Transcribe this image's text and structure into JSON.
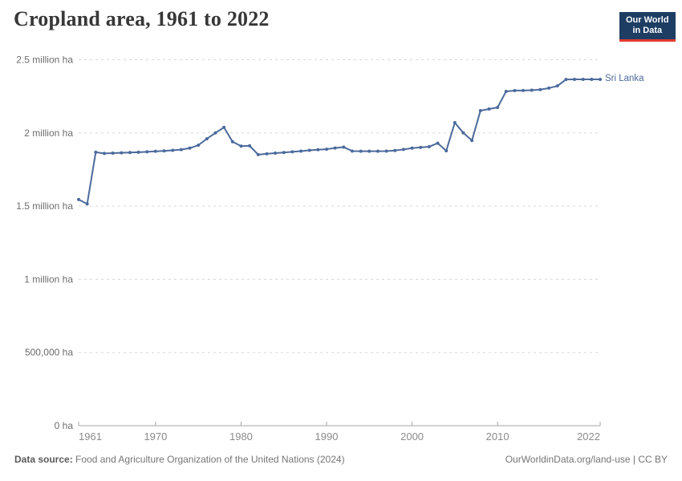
{
  "header": {
    "title": "Cropland area, 1961 to 2022",
    "logo_line1": "Our World",
    "logo_line2": "in Data"
  },
  "chart_data": {
    "type": "line",
    "title": "Cropland area, 1961 to 2022",
    "xlabel": "",
    "ylabel": "",
    "unit": "ha",
    "xlim": [
      1961,
      2022
    ],
    "ylim": [
      0,
      2500000
    ],
    "grid": "horizontal-dashed",
    "legend_position": "end-of-line-label",
    "x_ticks": [
      1961,
      1970,
      1980,
      1990,
      2000,
      2010,
      2022
    ],
    "y_ticks": [
      {
        "value": 0,
        "label": "0 ha"
      },
      {
        "value": 500000,
        "label": "500,000 ha"
      },
      {
        "value": 1000000,
        "label": "1 million ha"
      },
      {
        "value": 1500000,
        "label": "1.5 million ha"
      },
      {
        "value": 2000000,
        "label": "2 million ha"
      },
      {
        "value": 2500000,
        "label": "2.5 million ha"
      }
    ],
    "x": [
      1961,
      1962,
      1963,
      1964,
      1965,
      1966,
      1967,
      1968,
      1969,
      1970,
      1971,
      1972,
      1973,
      1974,
      1975,
      1976,
      1977,
      1978,
      1979,
      1980,
      1981,
      1982,
      1983,
      1984,
      1985,
      1986,
      1987,
      1988,
      1989,
      1990,
      1991,
      1992,
      1993,
      1994,
      1995,
      1996,
      1997,
      1998,
      1999,
      2000,
      2001,
      2002,
      2003,
      2004,
      2005,
      2006,
      2007,
      2008,
      2009,
      2010,
      2011,
      2012,
      2013,
      2014,
      2015,
      2016,
      2017,
      2018,
      2019,
      2020,
      2021,
      2022
    ],
    "series": [
      {
        "name": "Sri Lanka",
        "color": "#4C6A9C",
        "values": [
          1545000,
          1515000,
          1868000,
          1860000,
          1862000,
          1864000,
          1866000,
          1868000,
          1871000,
          1874000,
          1877000,
          1881000,
          1886000,
          1896000,
          1916000,
          1960000,
          2000000,
          2038000,
          1940000,
          1910000,
          1912000,
          1852000,
          1857000,
          1862000,
          1866000,
          1871000,
          1876000,
          1881000,
          1885000,
          1889000,
          1897000,
          1903000,
          1876000,
          1875000,
          1875000,
          1875000,
          1876000,
          1880000,
          1887000,
          1896000,
          1901000,
          1906000,
          1930000,
          1878000,
          2070000,
          2000000,
          1948000,
          2152000,
          2163000,
          2174000,
          2284000,
          2289000,
          2290000,
          2292000,
          2296000,
          2306000,
          2321000,
          2365000,
          2366000,
          2366000,
          2366000,
          2366000
        ]
      }
    ]
  },
  "footer": {
    "source_label": "Data source:",
    "source_text": "Food and Agriculture Organization of the United Nations (2024)",
    "attribution": "OurWorldinData.org/land-use | CC BY"
  },
  "colors": {
    "line": "#4C6A9C",
    "logo_bg": "#1d3d63",
    "logo_accent": "#e6392f",
    "grid": "#d8d8d8",
    "axis": "#a5a5a5",
    "title": "#373737",
    "y_tick_label": "#6d6d6d",
    "x_tick_label": "#8b8b8b",
    "footer_text": "#757575"
  }
}
